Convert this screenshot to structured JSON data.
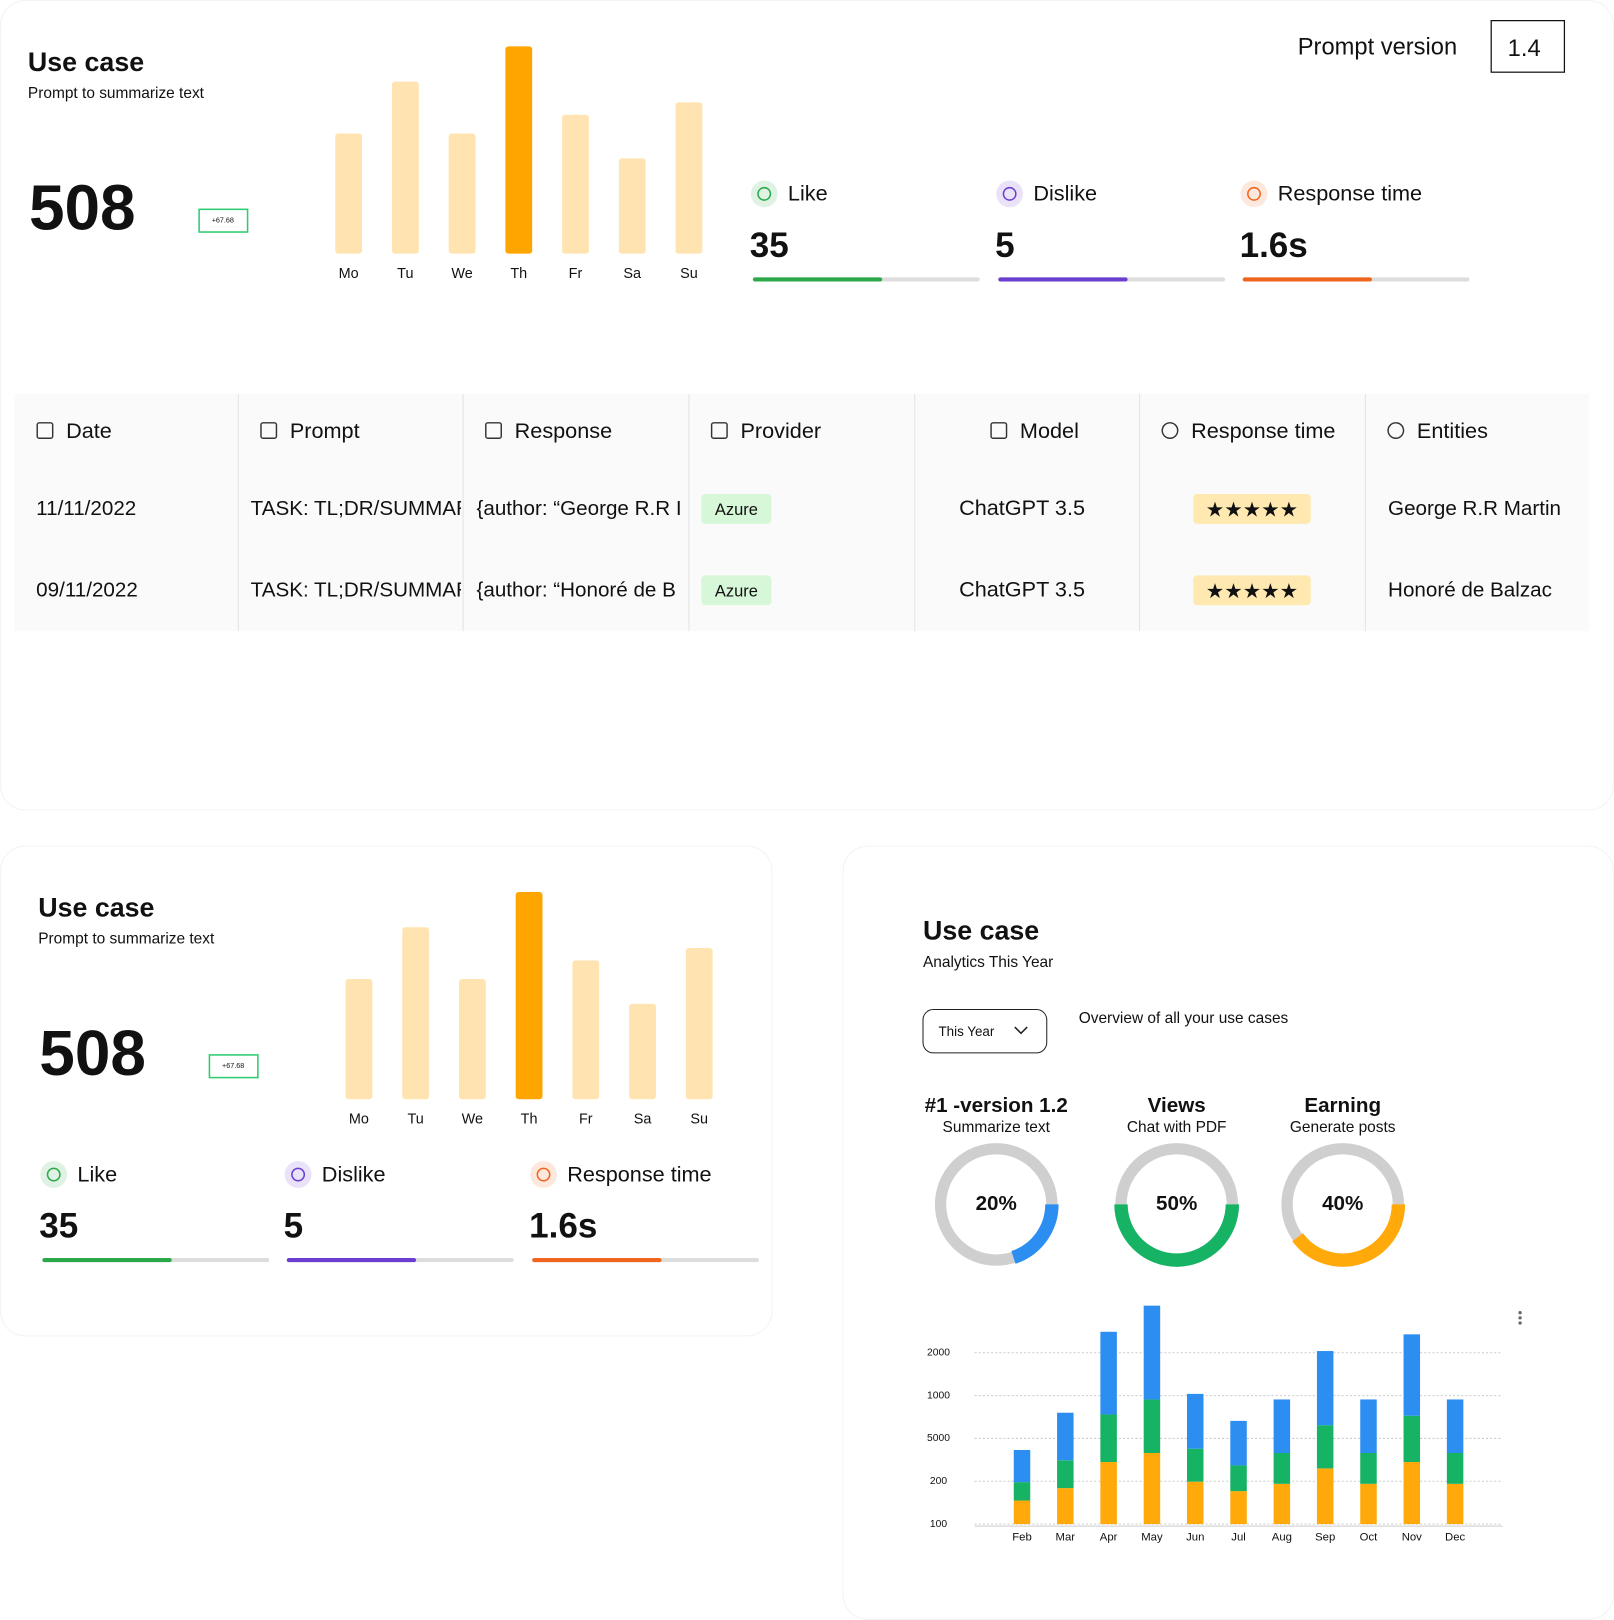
{
  "top": {
    "title": "Use case",
    "subtitle": "Prompt to summarize text",
    "total": 508,
    "badge": "+67.68",
    "days": [
      "Mo",
      "Tu",
      "We",
      "Th",
      "Fr",
      "Sa",
      "Su"
    ],
    "day_values": [
      58,
      83,
      58,
      100,
      67,
      46,
      73
    ],
    "highlight": 3,
    "color": "#ffe3b0",
    "highlight_color": "#ffa500",
    "prompt_version_label": "Prompt version",
    "prompt_version": "1.4",
    "metrics": [
      {
        "name": "Like",
        "value": 35,
        "progress": 57,
        "color": "#2aa84a"
      },
      {
        "name": "Dislike",
        "value": 5,
        "progress": 57,
        "color": "#6a3fd0"
      },
      {
        "name": "Response time",
        "value": "1.6s",
        "progress": 57,
        "color": "#f0651d"
      }
    ]
  },
  "table": {
    "columns": [
      "Date",
      "Prompt",
      "Response",
      "Provider",
      "Model",
      "Response time",
      "Entities"
    ],
    "rows": [
      {
        "date": "11/11/2022",
        "prompt": "TASK: TL;DR/SUMMAR",
        "response": "{author: “George R.R I",
        "provider": "Azure",
        "model": "ChatGPT 3.5",
        "rating": 5,
        "entities": "George R.R Martin"
      },
      {
        "date": "09/11/2022",
        "prompt": "TASK: TL;DR/SUMMAR",
        "response": "{author: “Honoré de B",
        "provider": "Azure",
        "model": "ChatGPT 3.5",
        "rating": 5,
        "entities": "Honoré de Balzac"
      }
    ]
  },
  "card": {
    "title": "Use case",
    "subtitle": "Prompt to summarize text",
    "total": 508,
    "badge": "+67.68",
    "days": [
      "Mo",
      "Tu",
      "We",
      "Th",
      "Fr",
      "Sa",
      "Su"
    ],
    "day_values": [
      58,
      83,
      58,
      100,
      67,
      46,
      73
    ],
    "highlight": 3,
    "color": "#ffe3b0",
    "highlight_color": "#ffa500",
    "metrics": [
      {
        "name": "Like",
        "value": 35,
        "progress": 57,
        "color": "#2aa84a"
      },
      {
        "name": "Dislike",
        "value": 5,
        "progress": 57,
        "color": "#6a3fd0"
      },
      {
        "name": "Response time",
        "value": "1.6s",
        "progress": 57,
        "color": "#f0651d"
      }
    ]
  },
  "analytics": {
    "title": "Use case",
    "subtitle": "Analytics This Year",
    "filter": "This Year",
    "overview": "Overview of all your use cases",
    "donuts": [
      {
        "title": "#1 -version 1.2",
        "subtitle": "Summarize text",
        "value": 20,
        "value_label": "20%",
        "color": "#2b8ef0"
      },
      {
        "title": "Views",
        "subtitle": "Chat with PDF",
        "value": 50,
        "value_label": "50%",
        "color": "#16b364"
      },
      {
        "title": "Earning",
        "subtitle": "Generate posts",
        "value": 40,
        "value_label": "40%",
        "color": "#ffa90a"
      }
    ]
  },
  "chart_data": {
    "type": "bar",
    "stacked": true,
    "grid": true,
    "categories": [
      "Feb",
      "Mar",
      "Apr",
      "May",
      "Jun",
      "Jul",
      "Aug",
      "Sep",
      "Oct",
      "Nov",
      "Dec"
    ],
    "series": [
      {
        "color": "#ffa90a",
        "values": [
          0.55,
          0.84,
          1.45,
          1.66,
          0.99,
          0.77,
          0.94,
          1.3,
          0.94,
          1.45,
          0.94
        ]
      },
      {
        "color": "#16b364",
        "values": [
          0.43,
          0.65,
          1.11,
          1.25,
          0.77,
          0.6,
          0.72,
          1.01,
          0.72,
          1.08,
          0.72
        ]
      },
      {
        "color": "#2b8ef0",
        "values": [
          0.75,
          1.11,
          1.93,
          2.19,
          1.28,
          1.04,
          1.25,
          1.73,
          1.25,
          1.9,
          1.25
        ]
      }
    ],
    "ylim": [
      0,
      5.2
    ],
    "yticks": [
      {
        "value": 0,
        "label": "100"
      },
      {
        "value": 1,
        "label": "200"
      },
      {
        "value": 2,
        "label": "5000"
      },
      {
        "value": 3,
        "label": "1000"
      },
      {
        "value": 4,
        "label": "2000"
      }
    ]
  }
}
